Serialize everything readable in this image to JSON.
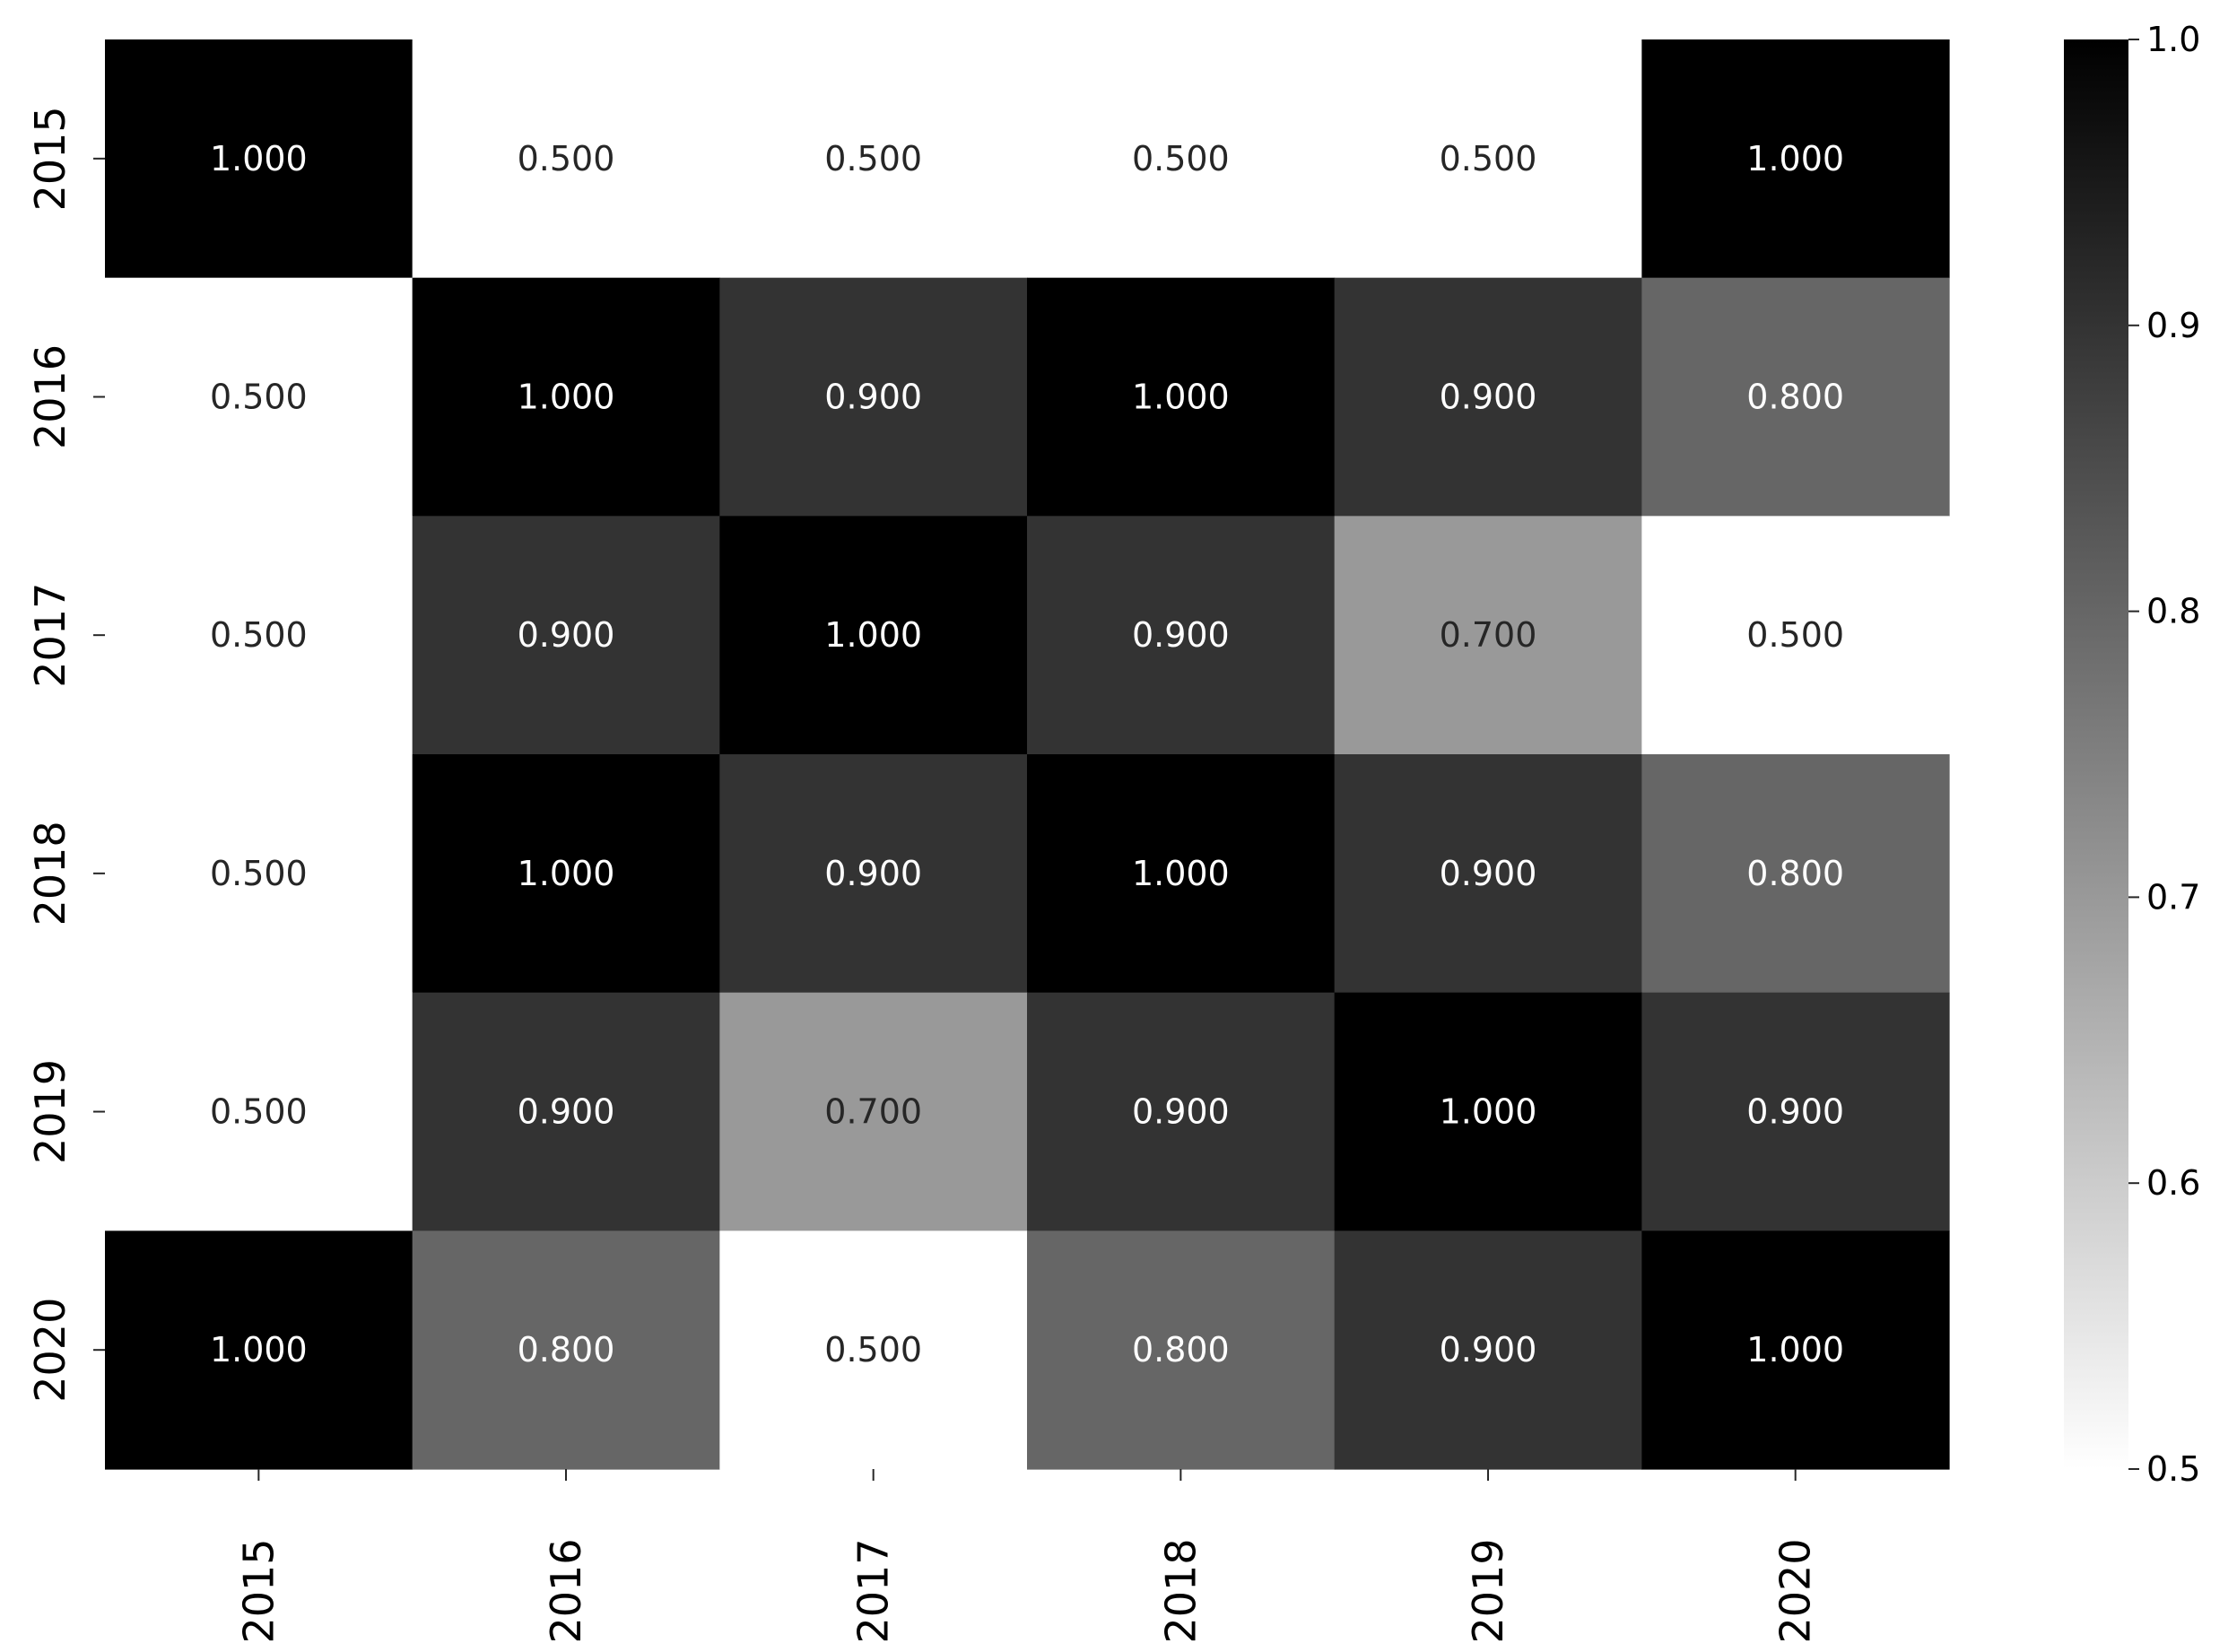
{
  "chart_data": {
    "type": "heatmap",
    "x_categories": [
      "2015",
      "2016",
      "2017",
      "2018",
      "2019",
      "2020"
    ],
    "y_categories": [
      "2015",
      "2016",
      "2017",
      "2018",
      "2019",
      "2020"
    ],
    "values": [
      [
        1.0,
        0.5,
        0.5,
        0.5,
        0.5,
        1.0
      ],
      [
        0.5,
        1.0,
        0.9,
        1.0,
        0.9,
        0.8
      ],
      [
        0.5,
        0.9,
        1.0,
        0.9,
        0.7,
        0.5
      ],
      [
        0.5,
        1.0,
        0.9,
        1.0,
        0.9,
        0.8
      ],
      [
        0.5,
        0.9,
        0.7,
        0.9,
        1.0,
        0.9
      ],
      [
        1.0,
        0.8,
        0.5,
        0.8,
        0.9,
        1.0
      ]
    ],
    "cell_labels": [
      [
        "1.000",
        "0.500",
        "0.500",
        "0.500",
        "0.500",
        "1.000"
      ],
      [
        "0.500",
        "1.000",
        "0.900",
        "1.000",
        "0.900",
        "0.800"
      ],
      [
        "0.500",
        "0.900",
        "1.000",
        "0.900",
        "0.700",
        "0.500"
      ],
      [
        "0.500",
        "1.000",
        "0.900",
        "1.000",
        "0.900",
        "0.800"
      ],
      [
        "0.500",
        "0.900",
        "0.700",
        "0.900",
        "1.000",
        "0.900"
      ],
      [
        "1.000",
        "0.800",
        "0.500",
        "0.800",
        "0.900",
        "1.000"
      ]
    ],
    "colorbar": {
      "min": 0.5,
      "max": 1.0,
      "ticks": [
        0.5,
        0.6,
        0.7,
        0.8,
        0.9,
        1.0
      ],
      "tick_labels": [
        "0.5",
        "0.6",
        "0.7",
        "0.8",
        "0.9",
        "1.0"
      ]
    },
    "colormap": {
      "low": "#ffffff",
      "high": "#000000"
    },
    "title": "",
    "xlabel": "",
    "ylabel": "",
    "grid": false
  }
}
